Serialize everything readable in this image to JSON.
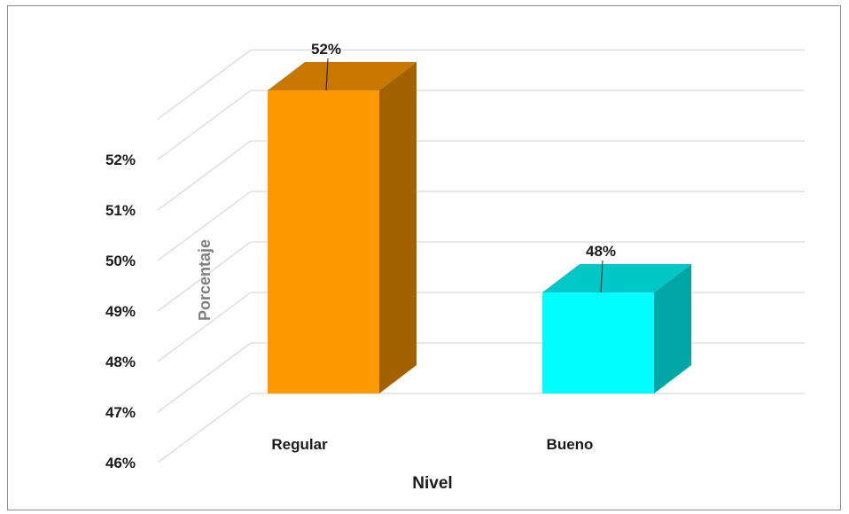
{
  "chart_data": {
    "type": "bar",
    "style": "3d-column",
    "categories": [
      "Regular",
      "Bueno"
    ],
    "values": [
      52,
      48
    ],
    "data_labels": [
      "52%",
      "48%"
    ],
    "colors": {
      "Regular": {
        "front": "#ff9900",
        "side": "#a36200",
        "top": "#c87800"
      },
      "Bueno": {
        "front": "#00ffff",
        "side": "#00a6a6",
        "top": "#00c8c8"
      }
    },
    "xlabel": "Nivel",
    "ylabel": "Porcentaje",
    "y_ticks": [
      "46%",
      "47%",
      "48%",
      "49%",
      "50%",
      "51%",
      "52%"
    ],
    "ylim": [
      46,
      52.8
    ],
    "grid": true,
    "gridline_color": "#d9d9d9",
    "legend": "none"
  }
}
